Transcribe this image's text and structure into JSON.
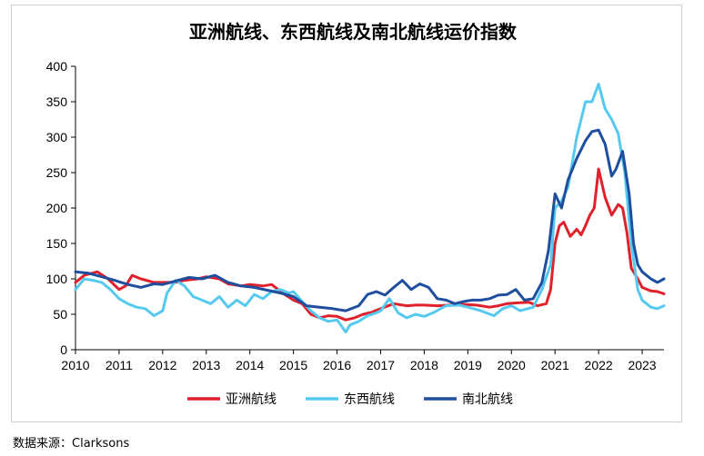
{
  "source_note": "数据来源：Clarksons",
  "chart_data": {
    "type": "line",
    "title": "亚洲航线、东西航线及南北航线运价指数",
    "xlabel": "",
    "ylabel": "",
    "xlim": [
      2010,
      2023.5
    ],
    "ylim": [
      0,
      400
    ],
    "y_ticks": [
      0,
      50,
      100,
      150,
      200,
      250,
      300,
      350,
      400
    ],
    "x_ticks": [
      2010,
      2011,
      2012,
      2013,
      2014,
      2015,
      2016,
      2017,
      2018,
      2019,
      2020,
      2021,
      2022,
      2023
    ],
    "x_tick_labels": [
      "2010",
      "2011",
      "2012",
      "2013",
      "2014",
      "2015",
      "2016",
      "2017",
      "2018",
      "2019",
      "2020",
      "2021",
      "2022",
      "2023"
    ],
    "grid": false,
    "legend_position": "bottom",
    "series": [
      {
        "name": "亚洲航线",
        "color": "#e0202b",
        "points": [
          [
            2010.0,
            95
          ],
          [
            2010.2,
            105
          ],
          [
            2010.5,
            110
          ],
          [
            2010.75,
            100
          ],
          [
            2011.0,
            85
          ],
          [
            2011.15,
            90
          ],
          [
            2011.3,
            105
          ],
          [
            2011.5,
            100
          ],
          [
            2011.8,
            95
          ],
          [
            2012.0,
            95
          ],
          [
            2012.3,
            95
          ],
          [
            2012.5,
            98
          ],
          [
            2012.8,
            100
          ],
          [
            2013.0,
            103
          ],
          [
            2013.3,
            100
          ],
          [
            2013.5,
            93
          ],
          [
            2013.8,
            90
          ],
          [
            2014.0,
            92
          ],
          [
            2014.3,
            90
          ],
          [
            2014.5,
            92
          ],
          [
            2014.75,
            80
          ],
          [
            2015.0,
            70
          ],
          [
            2015.2,
            65
          ],
          [
            2015.4,
            50
          ],
          [
            2015.6,
            45
          ],
          [
            2015.8,
            48
          ],
          [
            2016.0,
            47
          ],
          [
            2016.2,
            42
          ],
          [
            2016.4,
            45
          ],
          [
            2016.6,
            50
          ],
          [
            2016.8,
            53
          ],
          [
            2017.0,
            58
          ],
          [
            2017.3,
            65
          ],
          [
            2017.6,
            62
          ],
          [
            2017.8,
            63
          ],
          [
            2018.0,
            63
          ],
          [
            2018.3,
            62
          ],
          [
            2018.6,
            63
          ],
          [
            2018.9,
            64
          ],
          [
            2019.2,
            63
          ],
          [
            2019.5,
            60
          ],
          [
            2019.7,
            62
          ],
          [
            2019.9,
            65
          ],
          [
            2020.1,
            66
          ],
          [
            2020.4,
            67
          ],
          [
            2020.6,
            62
          ],
          [
            2020.8,
            65
          ],
          [
            2020.9,
            85
          ],
          [
            2021.0,
            150
          ],
          [
            2021.1,
            175
          ],
          [
            2021.2,
            180
          ],
          [
            2021.35,
            160
          ],
          [
            2021.5,
            170
          ],
          [
            2021.6,
            162
          ],
          [
            2021.7,
            175
          ],
          [
            2021.8,
            190
          ],
          [
            2021.9,
            200
          ],
          [
            2022.0,
            255
          ],
          [
            2022.15,
            215
          ],
          [
            2022.3,
            190
          ],
          [
            2022.45,
            205
          ],
          [
            2022.55,
            200
          ],
          [
            2022.65,
            165
          ],
          [
            2022.75,
            115
          ],
          [
            2022.9,
            100
          ],
          [
            2023.0,
            88
          ],
          [
            2023.2,
            83
          ],
          [
            2023.35,
            82
          ],
          [
            2023.5,
            79
          ]
        ]
      },
      {
        "name": "东西航线",
        "color": "#56c9ef",
        "points": [
          [
            2010.0,
            85
          ],
          [
            2010.2,
            100
          ],
          [
            2010.4,
            98
          ],
          [
            2010.6,
            95
          ],
          [
            2010.8,
            85
          ],
          [
            2011.0,
            72
          ],
          [
            2011.2,
            65
          ],
          [
            2011.4,
            60
          ],
          [
            2011.6,
            58
          ],
          [
            2011.8,
            48
          ],
          [
            2012.0,
            55
          ],
          [
            2012.1,
            80
          ],
          [
            2012.3,
            98
          ],
          [
            2012.5,
            90
          ],
          [
            2012.7,
            75
          ],
          [
            2012.9,
            70
          ],
          [
            2013.1,
            65
          ],
          [
            2013.3,
            75
          ],
          [
            2013.5,
            60
          ],
          [
            2013.7,
            70
          ],
          [
            2013.9,
            62
          ],
          [
            2014.1,
            78
          ],
          [
            2014.3,
            72
          ],
          [
            2014.5,
            82
          ],
          [
            2014.7,
            85
          ],
          [
            2014.9,
            80
          ],
          [
            2015.0,
            82
          ],
          [
            2015.2,
            68
          ],
          [
            2015.4,
            55
          ],
          [
            2015.6,
            45
          ],
          [
            2015.8,
            40
          ],
          [
            2016.0,
            42
          ],
          [
            2016.2,
            25
          ],
          [
            2016.3,
            35
          ],
          [
            2016.5,
            40
          ],
          [
            2016.7,
            48
          ],
          [
            2016.9,
            52
          ],
          [
            2017.0,
            55
          ],
          [
            2017.2,
            72
          ],
          [
            2017.4,
            52
          ],
          [
            2017.6,
            45
          ],
          [
            2017.8,
            50
          ],
          [
            2018.0,
            47
          ],
          [
            2018.2,
            52
          ],
          [
            2018.5,
            62
          ],
          [
            2018.8,
            63
          ],
          [
            2019.0,
            60
          ],
          [
            2019.3,
            55
          ],
          [
            2019.6,
            48
          ],
          [
            2019.8,
            58
          ],
          [
            2020.0,
            62
          ],
          [
            2020.2,
            55
          ],
          [
            2020.5,
            60
          ],
          [
            2020.7,
            85
          ],
          [
            2020.9,
            120
          ],
          [
            2021.0,
            200
          ],
          [
            2021.15,
            210
          ],
          [
            2021.3,
            230
          ],
          [
            2021.5,
            300
          ],
          [
            2021.7,
            350
          ],
          [
            2021.85,
            350
          ],
          [
            2022.0,
            375
          ],
          [
            2022.15,
            340
          ],
          [
            2022.3,
            325
          ],
          [
            2022.45,
            305
          ],
          [
            2022.6,
            250
          ],
          [
            2022.75,
            150
          ],
          [
            2022.9,
            85
          ],
          [
            2023.0,
            70
          ],
          [
            2023.2,
            60
          ],
          [
            2023.35,
            58
          ],
          [
            2023.5,
            62
          ]
        ]
      },
      {
        "name": "南北航线",
        "color": "#1f4e9e",
        "points": [
          [
            2010.0,
            110
          ],
          [
            2010.3,
            108
          ],
          [
            2010.6,
            103
          ],
          [
            2010.9,
            98
          ],
          [
            2011.2,
            92
          ],
          [
            2011.5,
            88
          ],
          [
            2011.8,
            93
          ],
          [
            2012.0,
            92
          ],
          [
            2012.3,
            97
          ],
          [
            2012.6,
            102
          ],
          [
            2012.9,
            100
          ],
          [
            2013.2,
            105
          ],
          [
            2013.5,
            95
          ],
          [
            2013.8,
            90
          ],
          [
            2014.1,
            88
          ],
          [
            2014.4,
            84
          ],
          [
            2014.7,
            80
          ],
          [
            2015.0,
            75
          ],
          [
            2015.3,
            62
          ],
          [
            2015.6,
            60
          ],
          [
            2015.9,
            58
          ],
          [
            2016.2,
            55
          ],
          [
            2016.5,
            62
          ],
          [
            2016.7,
            78
          ],
          [
            2016.9,
            82
          ],
          [
            2017.1,
            77
          ],
          [
            2017.3,
            88
          ],
          [
            2017.5,
            98
          ],
          [
            2017.7,
            85
          ],
          [
            2017.9,
            93
          ],
          [
            2018.1,
            88
          ],
          [
            2018.3,
            72
          ],
          [
            2018.5,
            70
          ],
          [
            2018.7,
            65
          ],
          [
            2018.9,
            68
          ],
          [
            2019.1,
            70
          ],
          [
            2019.3,
            70
          ],
          [
            2019.5,
            72
          ],
          [
            2019.7,
            77
          ],
          [
            2019.9,
            78
          ],
          [
            2020.1,
            85
          ],
          [
            2020.3,
            70
          ],
          [
            2020.5,
            72
          ],
          [
            2020.7,
            95
          ],
          [
            2020.85,
            140
          ],
          [
            2021.0,
            220
          ],
          [
            2021.15,
            200
          ],
          [
            2021.3,
            240
          ],
          [
            2021.5,
            270
          ],
          [
            2021.7,
            295
          ],
          [
            2021.85,
            308
          ],
          [
            2022.0,
            310
          ],
          [
            2022.15,
            290
          ],
          [
            2022.3,
            245
          ],
          [
            2022.4,
            255
          ],
          [
            2022.55,
            280
          ],
          [
            2022.7,
            220
          ],
          [
            2022.8,
            150
          ],
          [
            2022.9,
            120
          ],
          [
            2023.0,
            110
          ],
          [
            2023.2,
            100
          ],
          [
            2023.35,
            95
          ],
          [
            2023.5,
            100
          ]
        ]
      }
    ]
  }
}
